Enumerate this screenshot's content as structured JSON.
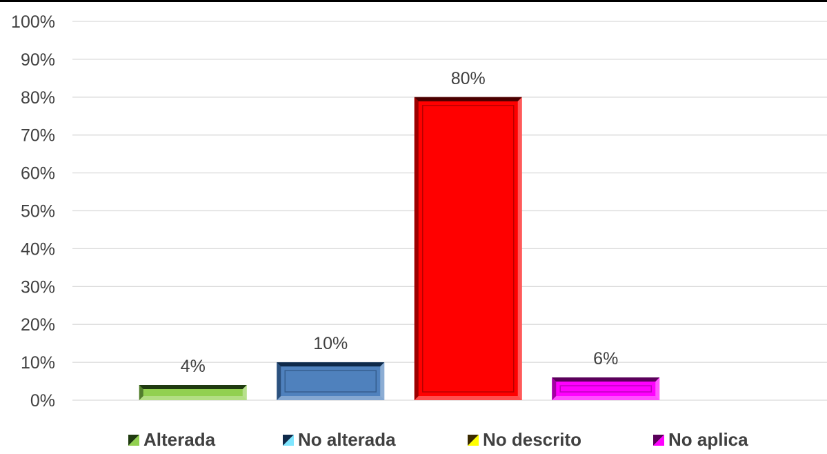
{
  "chart_data": {
    "type": "bar",
    "categories": [
      "Alterada",
      "No alterada",
      "No descrito",
      "No aplica"
    ],
    "values": [
      4,
      10,
      80,
      6
    ],
    "value_labels": [
      "4%",
      "10%",
      "80%",
      "6%"
    ],
    "ylim": [
      0,
      100
    ],
    "y_ticks": [
      "0%",
      "10%",
      "20%",
      "30%",
      "40%",
      "50%",
      "60%",
      "70%",
      "80%",
      "90%",
      "100%"
    ],
    "grid": true,
    "legend_position": "bottom",
    "colors": [
      "#92D050",
      "#4F81BD",
      "#FF0000",
      "#FF00FF"
    ],
    "dark_colors": [
      "#1F3A10",
      "#0F2A4A",
      "#4A0000",
      "#5A005A"
    ]
  }
}
